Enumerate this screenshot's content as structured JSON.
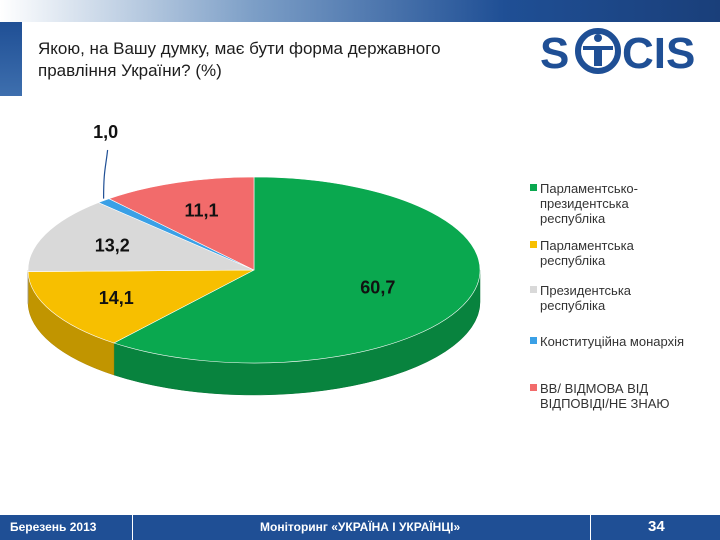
{
  "header": {
    "title": "Якою, на Вашу думку, має бути форма державного правління України? (%)",
    "logo_text": "SOCIS"
  },
  "chart_data": {
    "type": "pie",
    "categories": [
      "Парламентсько-президентська республіка",
      "Парламентська республіка",
      "Президентська республіка",
      "Конституційна монархія",
      "ВВ/ ВІДМОВА ВІД ВІДПОВІДІ/НЕ ЗНАЮ"
    ],
    "values": [
      60.7,
      14.1,
      13.2,
      1.0,
      11.1
    ],
    "value_labels": [
      "60,7",
      "14,1",
      "13,2",
      "1,0",
      "11,1"
    ],
    "colors": [
      "#0aa84f",
      "#f7bf00",
      "#d9d9d9",
      "#3aa0e6",
      "#f26b6b"
    ],
    "legend_lines": [
      [
        "Парламентсько-",
        "президентська",
        "республіка"
      ],
      [
        "Парламентська",
        "республіка"
      ],
      [
        "Президентська",
        "республіка"
      ],
      [
        "Конституційна  монархія"
      ],
      [
        "ВВ/ ВІДМОВА ВІД",
        "ВІДПОВІДІ/НЕ  ЗНАЮ"
      ]
    ],
    "legend_position": "right",
    "style": "3d"
  },
  "footer": {
    "date": "Березень 2013",
    "project": "Моніторинг «УКРАЇНА І УКРАЇНЦІ»",
    "page": "34"
  }
}
